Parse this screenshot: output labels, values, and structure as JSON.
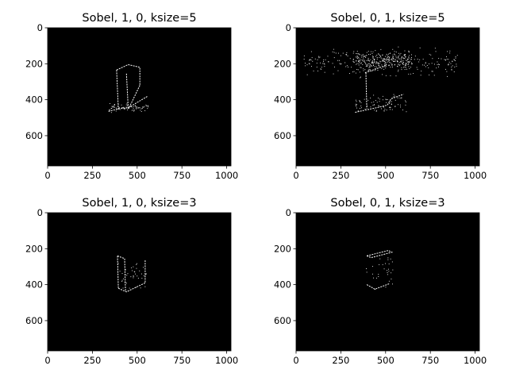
{
  "figure": {
    "background": "#ffffff",
    "image_background": "#000000",
    "edge_color": "#ffffff"
  },
  "chart_data": [
    {
      "type": "image",
      "title": "Sobel, 1, 0, ksize=5",
      "xlim": [
        0,
        1024
      ],
      "ylim": [
        768,
        0
      ],
      "xticks": [
        0,
        250,
        500,
        750,
        1000
      ],
      "yticks": [
        0,
        200,
        400,
        600
      ],
      "features": [
        {
          "kind": "line",
          "points": [
            [
              385,
              235
            ],
            [
              450,
              205
            ],
            [
              515,
              220
            ],
            [
              515,
              320
            ]
          ]
        },
        {
          "kind": "line",
          "points": [
            [
              385,
              235
            ],
            [
              395,
              455
            ]
          ]
        },
        {
          "kind": "line",
          "points": [
            [
              440,
              255
            ],
            [
              450,
              445
            ]
          ]
        },
        {
          "kind": "line",
          "points": [
            [
              515,
              320
            ],
            [
              455,
              445
            ]
          ]
        },
        {
          "kind": "line",
          "points": [
            [
              340,
              465
            ],
            [
              395,
              450
            ],
            [
              450,
              445
            ],
            [
              560,
              380
            ]
          ]
        },
        {
          "kind": "dots",
          "x_range": [
            340,
            560
          ],
          "y_range": [
            410,
            470
          ],
          "count": 70
        }
      ]
    },
    {
      "type": "image",
      "title": "Sobel, 0, 1, ksize=5",
      "xlim": [
        0,
        1024
      ],
      "ylim": [
        768,
        0
      ],
      "xticks": [
        0,
        250,
        500,
        750,
        1000
      ],
      "yticks": [
        0,
        200,
        400,
        600
      ],
      "features": [
        {
          "kind": "dots",
          "x_range": [
            40,
            900
          ],
          "y_range": [
            100,
            280
          ],
          "count": 260
        },
        {
          "kind": "dots",
          "x_range": [
            330,
            640
          ],
          "y_range": [
            120,
            240
          ],
          "count": 220
        },
        {
          "kind": "line",
          "points": [
            [
              385,
              250
            ],
            [
              500,
              210
            ]
          ]
        },
        {
          "kind": "line",
          "points": [
            [
              390,
              250
            ],
            [
              395,
              450
            ]
          ]
        },
        {
          "kind": "line",
          "points": [
            [
              510,
              430
            ],
            [
              530,
              395
            ],
            [
              600,
              370
            ]
          ]
        },
        {
          "kind": "line",
          "points": [
            [
              330,
              470
            ],
            [
              470,
              440
            ],
            [
              510,
              430
            ]
          ]
        },
        {
          "kind": "dots",
          "x_range": [
            330,
            620
          ],
          "y_range": [
            360,
            480
          ],
          "count": 80
        }
      ]
    },
    {
      "type": "image",
      "title": "Sobel, 1, 0, ksize=3",
      "xlim": [
        0,
        1024
      ],
      "ylim": [
        768,
        0
      ],
      "xticks": [
        0,
        250,
        500,
        750,
        1000
      ],
      "yticks": [
        0,
        200,
        400,
        600
      ],
      "features": [
        {
          "kind": "line",
          "points": [
            [
              390,
              240
            ],
            [
              395,
              420
            ]
          ]
        },
        {
          "kind": "line",
          "points": [
            [
              430,
              255
            ],
            [
              435,
              435
            ]
          ]
        },
        {
          "kind": "line",
          "points": [
            [
              545,
              265
            ],
            [
              545,
              390
            ]
          ]
        },
        {
          "kind": "line",
          "points": [
            [
              395,
              420
            ],
            [
              440,
              440
            ],
            [
              545,
              390
            ]
          ]
        },
        {
          "kind": "line",
          "points": [
            [
              390,
              240
            ],
            [
              430,
              255
            ]
          ]
        },
        {
          "kind": "dots",
          "x_range": [
            385,
            550
          ],
          "y_range": [
            240,
            445
          ],
          "count": 40
        }
      ]
    },
    {
      "type": "image",
      "title": "Sobel, 0, 1, ksize=3",
      "xlim": [
        0,
        1024
      ],
      "ylim": [
        768,
        0
      ],
      "xticks": [
        0,
        250,
        500,
        750,
        1000
      ],
      "yticks": [
        0,
        200,
        400,
        600
      ],
      "features": [
        {
          "kind": "line",
          "points": [
            [
              395,
              240
            ],
            [
              515,
              210
            ],
            [
              535,
              220
            ],
            [
              420,
              250
            ],
            [
              395,
              240
            ]
          ]
        },
        {
          "kind": "line",
          "points": [
            [
              395,
              400
            ],
            [
              440,
              425
            ],
            [
              520,
              395
            ]
          ]
        },
        {
          "kind": "dots",
          "x_range": [
            390,
            540
          ],
          "y_range": [
            205,
            430
          ],
          "count": 30
        }
      ]
    }
  ]
}
